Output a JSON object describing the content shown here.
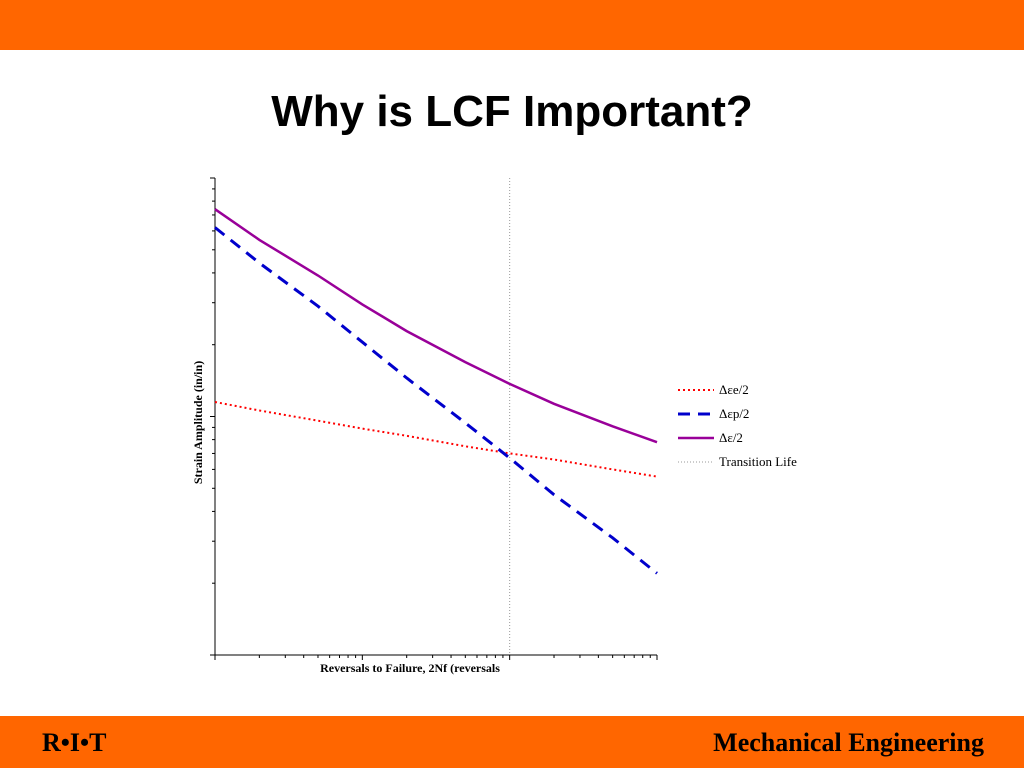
{
  "slide": {
    "title": "Why is LCF Important?",
    "footer_left": "R•I•T",
    "footer_right": "Mechanical Engineering",
    "bar_color": "#ff6600"
  },
  "chart_data": {
    "type": "line",
    "title": "",
    "xlabel": "Reversals to Failure, 2Nf (reversals",
    "ylabel": "Strain Amplitude (in/in)",
    "xscale": "log",
    "yscale": "log",
    "x_tick_labels": "none",
    "y_tick_labels": "none",
    "xlim": [
      1,
      1000
    ],
    "ylim": [
      0.001,
      0.1
    ],
    "grid": false,
    "legend_position": "right",
    "x": [
      1,
      2,
      5,
      10,
      20,
      50,
      100,
      200,
      500,
      1000
    ],
    "series": [
      {
        "name": "Δεe/2",
        "color": "#ff0000",
        "style": "dotted",
        "values": [
          0.0115,
          0.0106,
          0.0096,
          0.0089,
          0.0083,
          0.0075,
          0.007,
          0.0066,
          0.006,
          0.0056
        ]
      },
      {
        "name": "Δεp/2",
        "color": "#0000cc",
        "style": "dashed",
        "values": [
          0.062,
          0.044,
          0.029,
          0.0205,
          0.0145,
          0.0094,
          0.0067,
          0.0047,
          0.0031,
          0.0022
        ]
      },
      {
        "name": "Δε/2",
        "color": "#990099",
        "style": "solid",
        "values": [
          0.074,
          0.055,
          0.039,
          0.0295,
          0.0228,
          0.0169,
          0.0137,
          0.0113,
          0.0091,
          0.0078
        ]
      },
      {
        "name": "Transition Life",
        "color": "#999999",
        "style": "thin-dotted",
        "vertical_x": 100
      }
    ]
  }
}
